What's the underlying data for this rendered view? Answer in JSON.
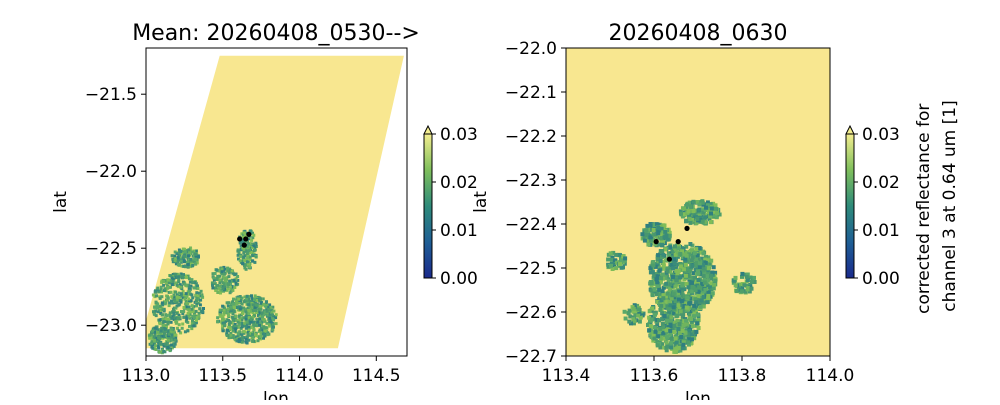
{
  "chart_data": [
    {
      "type": "heatmap",
      "title": "Mean: 20260408_0530-->",
      "xlabel": "lon",
      "ylabel": "lat",
      "xlim": [
        113.0,
        114.7
      ],
      "ylim": [
        -23.2,
        -21.2
      ],
      "xticks": [
        113.0,
        113.5,
        114.0,
        114.5
      ],
      "yticks": [
        -21.5,
        -22.0,
        -22.5,
        -23.0
      ],
      "colorbar": {
        "label": "",
        "range": [
          0.0,
          0.03
        ],
        "ticks": [
          0.0,
          0.01,
          0.02,
          0.03
        ],
        "extend": "max",
        "colormap": "cividis-like"
      },
      "swath_corners_lonlat": [
        [
          113.48,
          -21.25
        ],
        [
          114.68,
          -21.25
        ],
        [
          114.25,
          -23.15
        ],
        [
          112.95,
          -23.15
        ]
      ],
      "markers": [
        [
          113.61,
          -22.44
        ],
        [
          113.67,
          -22.41
        ],
        [
          113.65,
          -22.44
        ],
        [
          113.64,
          -22.48
        ]
      ]
    },
    {
      "type": "heatmap",
      "title": "20260408_0630",
      "xlabel": "lon",
      "ylabel": "lat",
      "xlim": [
        113.4,
        114.0
      ],
      "ylim": [
        -22.7,
        -22.0
      ],
      "xticks": [
        113.4,
        113.6,
        113.8,
        114.0
      ],
      "yticks": [
        -22.0,
        -22.1,
        -22.2,
        -22.3,
        -22.4,
        -22.5,
        -22.6,
        -22.7
      ],
      "colorbar": {
        "label": "corrected reflectance for\nchannel 3 at 0.64 um [1]",
        "label_lines": [
          "corrected reflectance for",
          "channel 3 at 0.64 um [1]"
        ],
        "range": [
          0.0,
          0.03
        ],
        "ticks": [
          0.0,
          0.01,
          0.02,
          0.03
        ],
        "extend": "max",
        "colormap": "cividis-like"
      },
      "markers": [
        [
          113.605,
          -22.44
        ],
        [
          113.675,
          -22.41
        ],
        [
          113.655,
          -22.44
        ],
        [
          113.635,
          -22.48
        ]
      ]
    }
  ],
  "colors": {
    "background_fill": "#f8e790",
    "low": "#00204d",
    "mid": "#3d8b6e",
    "high": "#fff28a",
    "marker": "#000000"
  }
}
